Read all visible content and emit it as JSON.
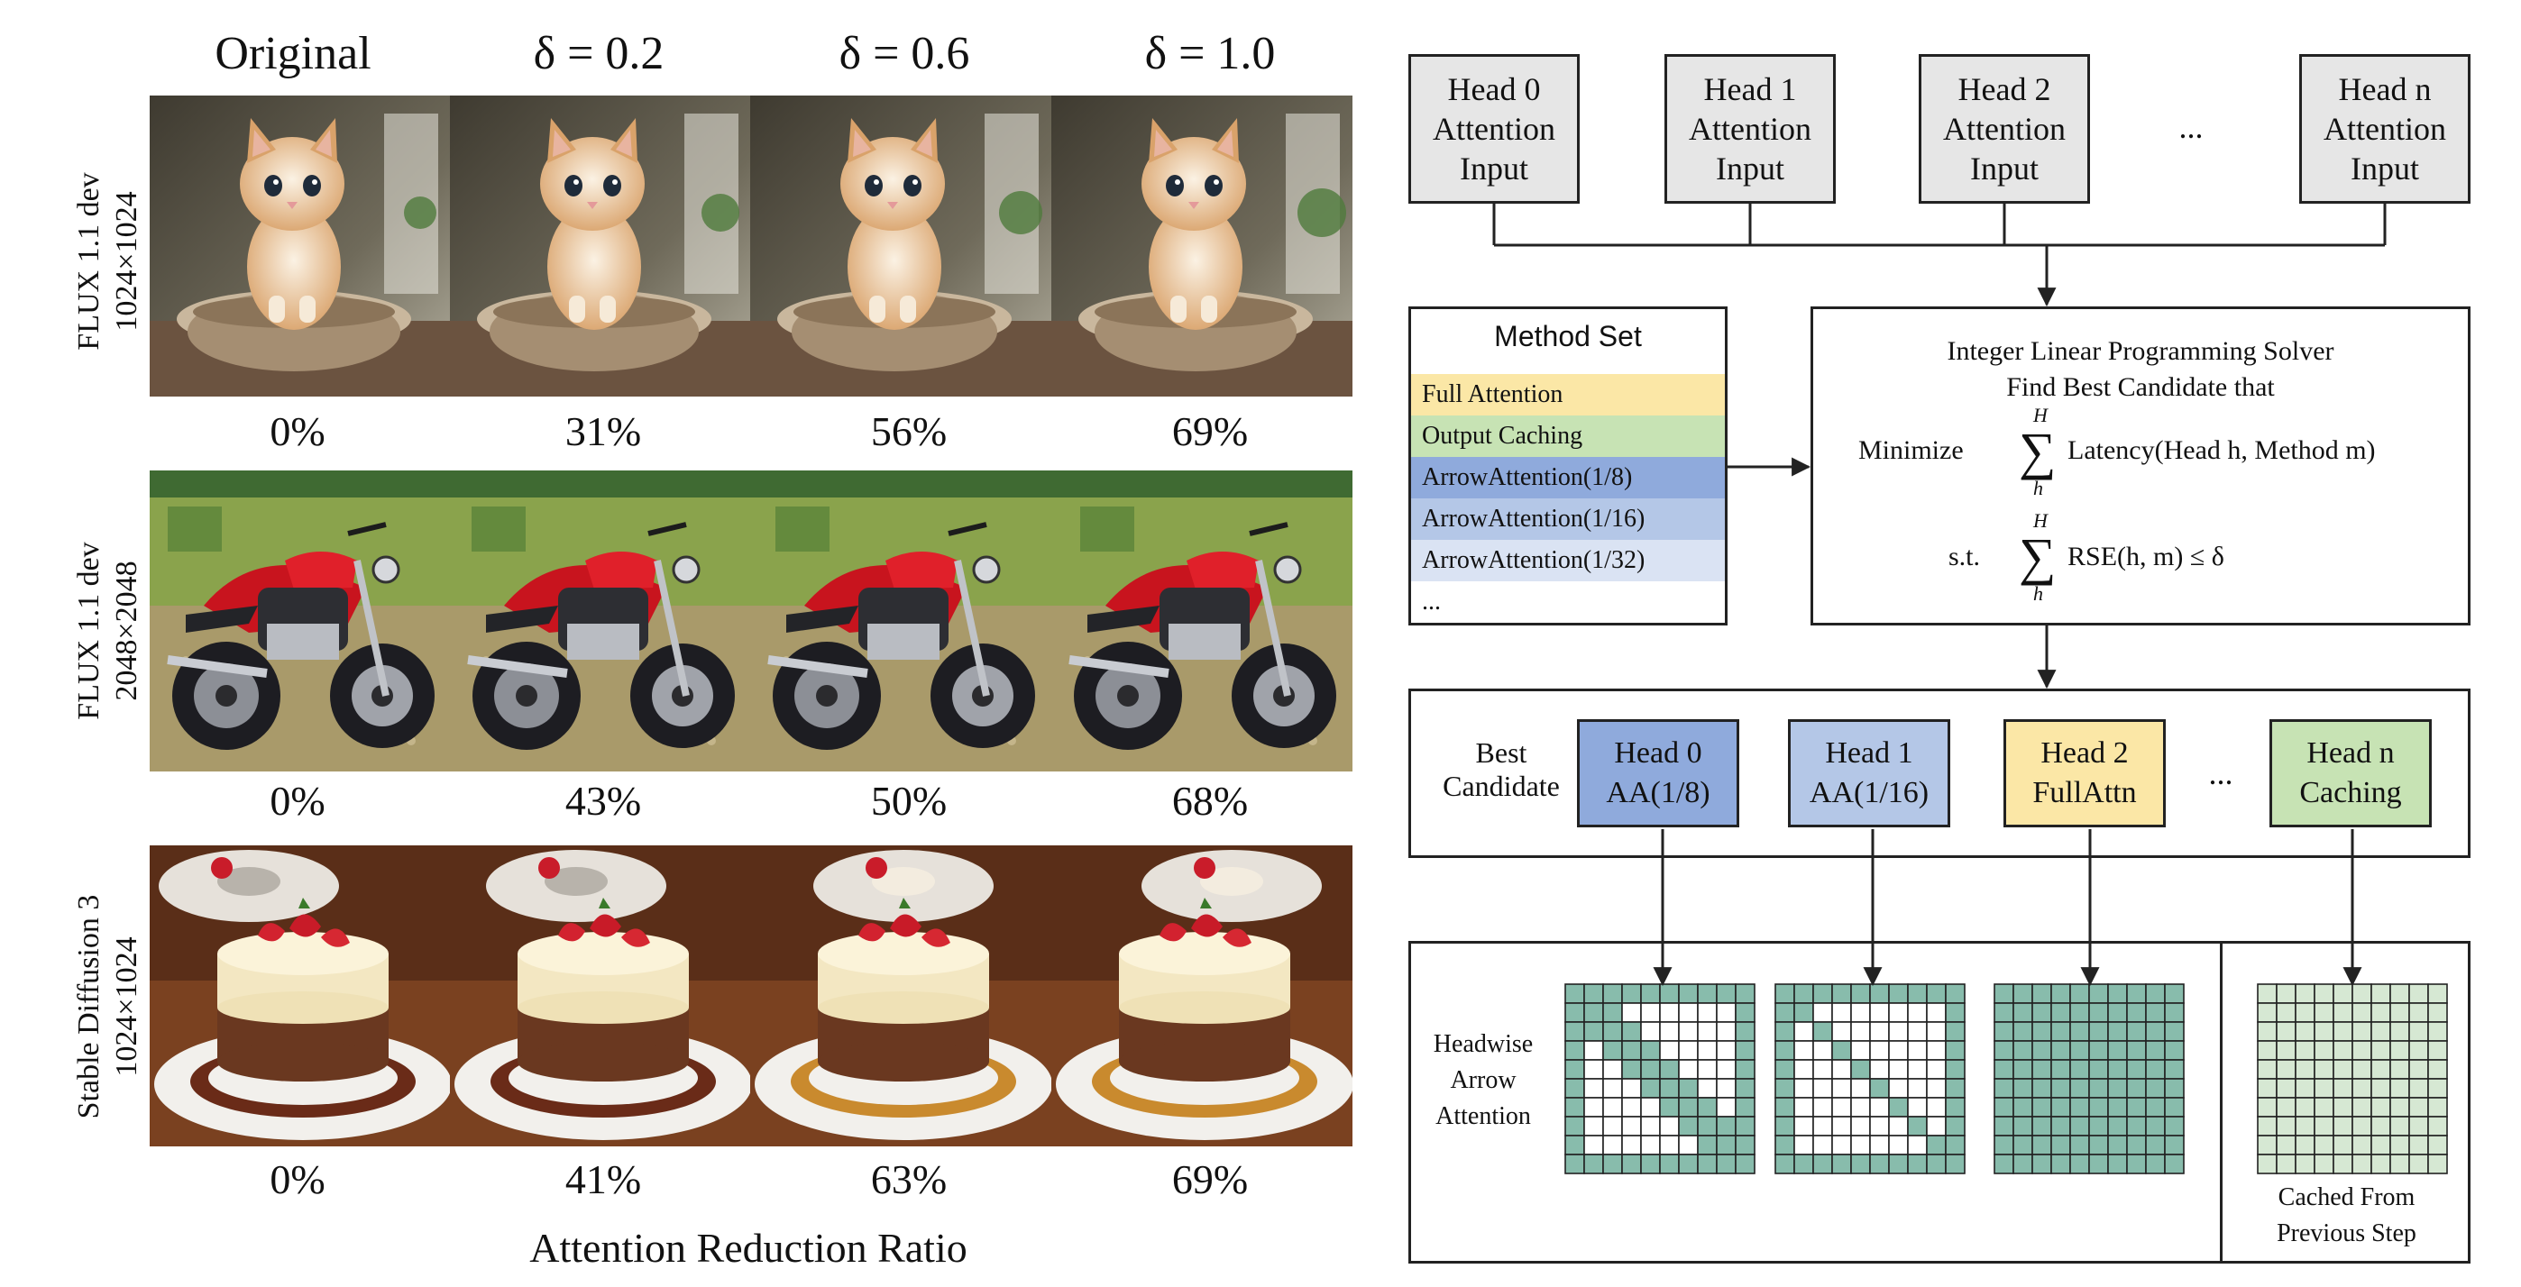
{
  "grid": {
    "column_headers": [
      "Original",
      "δ = 0.2",
      "δ = 0.6",
      "δ = 1.0"
    ],
    "rows": [
      {
        "model": "FLUX 1.1 dev",
        "resolution": "1024×1024",
        "subject": "kitten-in-bowl",
        "ratios": [
          "0%",
          "31%",
          "56%",
          "69%"
        ]
      },
      {
        "model": "FLUX 1.1 dev",
        "resolution": "2048×2048",
        "subject": "red-motorcycle",
        "ratios": [
          "0%",
          "43%",
          "50%",
          "68%"
        ]
      },
      {
        "model": "Stable Diffusion 3",
        "resolution": "1024×1024",
        "subject": "cheesecake-with-strawberries",
        "ratios": [
          "0%",
          "41%",
          "63%",
          "69%"
        ]
      }
    ],
    "caption": "Attention Reduction Ratio"
  },
  "diagram": {
    "heads": [
      {
        "line1": "Head 0",
        "line2": "Attention",
        "line3": "Input"
      },
      {
        "line1": "Head 1",
        "line2": "Attention",
        "line3": "Input"
      },
      {
        "line1": "Head 2",
        "line2": "Attention",
        "line3": "Input"
      },
      {
        "line1": "Head n",
        "line2": "Attention",
        "line3": "Input"
      }
    ],
    "heads_ellipsis": "...",
    "method_set": {
      "title": "Method Set",
      "items": [
        {
          "label": "Full Attention",
          "color": "#fbe7a6"
        },
        {
          "label": "Output Caching",
          "color": "#c7e3b4"
        },
        {
          "label": "ArrowAttention(1/8)",
          "color": "#8faadc"
        },
        {
          "label": "ArrowAttention(1/16)",
          "color": "#b4c7e7"
        },
        {
          "label": "ArrowAttention(1/32)",
          "color": "#dae3f3"
        },
        {
          "label": "...",
          "color": "#ffffff"
        }
      ]
    },
    "solver": {
      "title1": "Integer Linear Programming Solver",
      "title2": "Find Best Candidate that",
      "minimize": "Minimize",
      "sum_upper": "H",
      "sum_lower": "h",
      "objective": "Latency(Head h, Method m)",
      "st": "s.t.",
      "constraint": "RSE(h, m) ≤ δ"
    },
    "best": {
      "label1": "Best",
      "label2": "Candidate",
      "ellipsis": "...",
      "candidates": [
        {
          "line1": "Head 0",
          "line2": "AA(1/8)",
          "color": "#8faadc",
          "pattern": "arrow8"
        },
        {
          "line1": "Head 1",
          "line2": "AA(1/16)",
          "color": "#b4c7e7",
          "pattern": "arrow16"
        },
        {
          "line1": "Head 2",
          "line2": "FullAttn",
          "color": "#fbe7a6",
          "pattern": "full"
        },
        {
          "line1": "Head n",
          "line2": "Caching",
          "color": "#c7e3b4",
          "pattern": "cached"
        }
      ]
    },
    "bottom": {
      "label1": "Headwise",
      "label2": "Arrow",
      "label3": "Attention",
      "cached1": "Cached From",
      "cached2": "Previous Step"
    },
    "colors": {
      "mask_fill": "#88bcac",
      "cached_fill": "#d6e8d3",
      "grid_line": "#222222"
    }
  }
}
